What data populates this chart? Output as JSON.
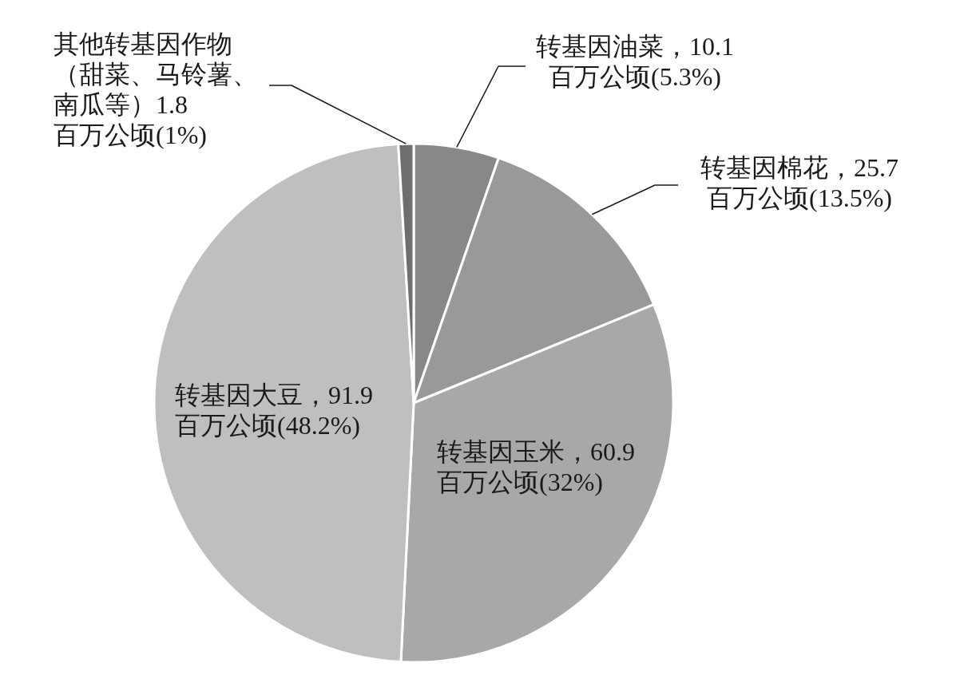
{
  "chart_data": {
    "type": "pie",
    "categories": [
      "转基因油菜",
      "转基因棉花",
      "转基因玉米",
      "转基因大豆",
      "其他转基因作物（甜菜、马铃薯、南瓜等）"
    ],
    "values": [
      10.1,
      25.7,
      60.9,
      91.9,
      1.8
    ],
    "colors": [
      "#888888",
      "#999999",
      "#a8a8a8",
      "#bfbfbf",
      "#6e6e6e"
    ],
    "value_labels": [
      "，10.1\n百万公顷(5.3%)",
      "，25.7\n百万公顷(13.5%)",
      "，60.9\n百万公顷(32%)",
      "，91.9\n百万公顷(48.2%)",
      "1.8\n百万公顷(1%)"
    ]
  }
}
